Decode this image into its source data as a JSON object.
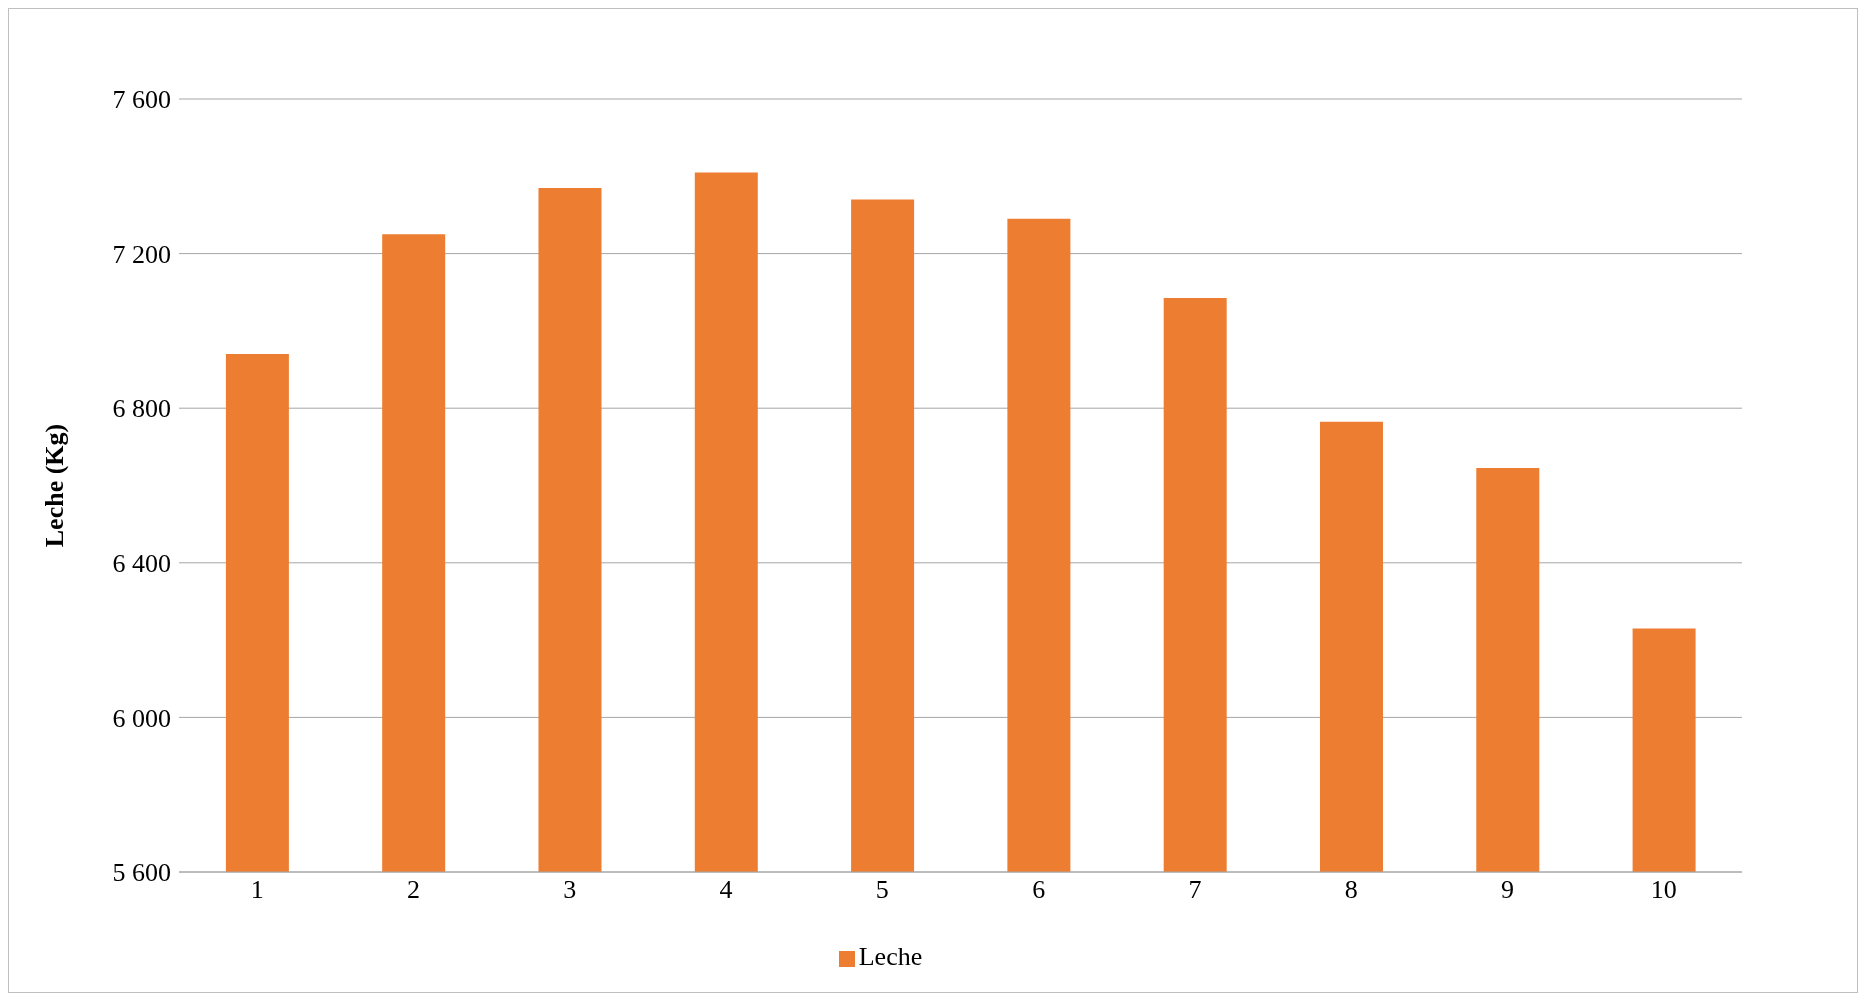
{
  "chart_data": {
    "type": "bar",
    "ylabel": "Leche (Kg)",
    "categories": [
      "1",
      "2",
      "3",
      "4",
      "5",
      "6",
      "7",
      "8",
      "9",
      "10"
    ],
    "series": [
      {
        "name": "Leche",
        "color": "#ed7d31",
        "values": [
          6940,
          7250,
          7370,
          7410,
          7340,
          7290,
          7085,
          6765,
          6645,
          6230
        ]
      }
    ],
    "ylim": [
      5600,
      7600
    ],
    "yticks": [
      {
        "value": 5600,
        "label": "5 600"
      },
      {
        "value": 6000,
        "label": "6 000"
      },
      {
        "value": 6400,
        "label": "6 400"
      },
      {
        "value": 6800,
        "label": "6 800"
      },
      {
        "value": 7200,
        "label": "7 200"
      },
      {
        "value": 7600,
        "label": "7 600"
      }
    ],
    "grid": "y",
    "legend": "bottom"
  }
}
